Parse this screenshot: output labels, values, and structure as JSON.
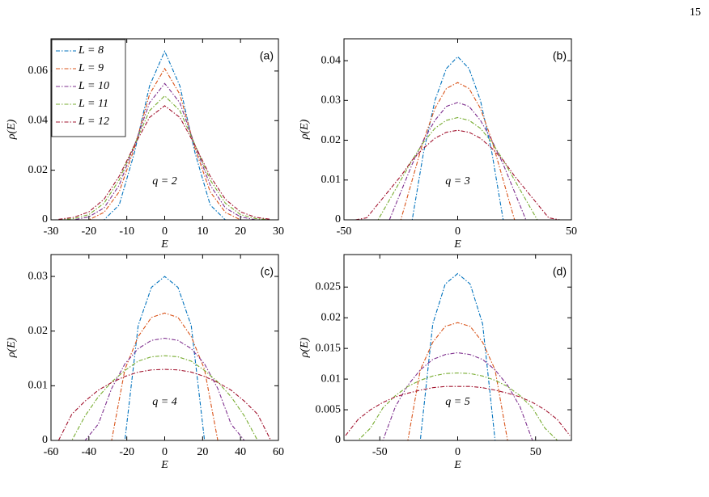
{
  "page_number": "15",
  "chart_data": [
    {
      "type": "line",
      "panel_label": "(a)",
      "annotation": "q = 2",
      "xlabel": "E",
      "ylabel": "ρ(E)",
      "legend": "upper left",
      "x": [
        -28,
        -24,
        -20,
        -16,
        -12,
        -8,
        -4,
        0,
        4,
        8,
        12,
        16,
        20,
        24,
        28
      ],
      "xlim": [
        -30,
        30
      ],
      "xticks": [
        -30,
        -20,
        -10,
        0,
        10,
        20,
        30
      ],
      "ylim": [
        0,
        0.073
      ],
      "yticks": [
        0,
        0.02,
        0.04,
        0.06
      ],
      "series": [
        {
          "name": "L = 8",
          "color": "#0072bd",
          "values": [
            0,
            0,
            0,
            0,
            0.006,
            0.027,
            0.054,
            0.068,
            0.054,
            0.027,
            0.006,
            0,
            0,
            0,
            0
          ]
        },
        {
          "name": "L = 9",
          "color": "#d95319",
          "values": [
            0,
            0,
            0,
            0.003,
            0.0113,
            0.0288,
            0.0506,
            0.061,
            0.0506,
            0.0288,
            0.0113,
            0.003,
            0,
            0,
            0
          ]
        },
        {
          "name": "L = 10",
          "color": "#7e2f8e",
          "values": [
            0,
            0,
            0.0012,
            0.0048,
            0.014,
            0.0299,
            0.0472,
            0.055,
            0.0472,
            0.0299,
            0.014,
            0.0048,
            0.0012,
            0,
            0
          ]
        },
        {
          "name": "L = 11",
          "color": "#77ac30",
          "values": [
            0,
            0.0005,
            0.0021,
            0.0067,
            0.0161,
            0.0302,
            0.044,
            0.05,
            0.044,
            0.0302,
            0.0161,
            0.0067,
            0.0021,
            0.0005,
            0
          ]
        },
        {
          "name": "L = 12",
          "color": "#a2142f",
          "values": [
            0.0002,
            0.001,
            0.0032,
            0.0083,
            0.0176,
            0.03,
            0.0413,
            0.046,
            0.0413,
            0.03,
            0.0176,
            0.0083,
            0.0032,
            0.001,
            0.0002
          ]
        }
      ]
    },
    {
      "type": "line",
      "panel_label": "(b)",
      "annotation": "q = 3",
      "xlabel": "E",
      "ylabel": "ρ(E)",
      "x": [
        -45,
        -40,
        -35,
        -30,
        -25,
        -20,
        -15,
        -10,
        -5,
        0,
        5,
        10,
        15,
        20,
        25,
        30,
        35,
        40,
        45
      ],
      "xlim": [
        -50,
        50
      ],
      "xticks": [
        -50,
        0,
        50
      ],
      "ylim": [
        0,
        0.0455
      ],
      "yticks": [
        0,
        0.01,
        0.02,
        0.03,
        0.04
      ],
      "series": [
        {
          "color": "#0072bd",
          "values": [
            0,
            0,
            0,
            0,
            0,
            0,
            0.017,
            0.03,
            0.038,
            0.041,
            0.038,
            0.03,
            0.017,
            0,
            0,
            0,
            0,
            0,
            0
          ]
        },
        {
          "color": "#d95319",
          "values": [
            0,
            0,
            0,
            0,
            0,
            0.01,
            0.02,
            0.028,
            0.033,
            0.0345,
            0.033,
            0.028,
            0.02,
            0.01,
            0,
            0,
            0,
            0,
            0
          ]
        },
        {
          "color": "#7e2f8e",
          "values": [
            0,
            0,
            0,
            0,
            0.007,
            0.014,
            0.02,
            0.025,
            0.0285,
            0.0295,
            0.0285,
            0.025,
            0.02,
            0.014,
            0.007,
            0,
            0,
            0,
            0
          ]
        },
        {
          "color": "#77ac30",
          "values": [
            0,
            0,
            0,
            0.005,
            0.01,
            0.015,
            0.0195,
            0.023,
            0.025,
            0.0257,
            0.025,
            0.023,
            0.0195,
            0.015,
            0.01,
            0.005,
            0,
            0,
            0
          ]
        },
        {
          "color": "#a2142f",
          "values": [
            0,
            0.0005,
            0.004,
            0.0075,
            0.011,
            0.015,
            0.018,
            0.0205,
            0.022,
            0.0225,
            0.022,
            0.0205,
            0.018,
            0.015,
            0.011,
            0.0075,
            0.004,
            0.0005,
            0
          ]
        }
      ]
    },
    {
      "type": "line",
      "panel_label": "(c)",
      "annotation": "q = 4",
      "xlabel": "E",
      "ylabel": "ρ(E)",
      "x": [
        -56,
        -49,
        -42,
        -35,
        -28,
        -21,
        -14,
        -7,
        0,
        7,
        14,
        21,
        28,
        35,
        42,
        49,
        56
      ],
      "xlim": [
        -60,
        60
      ],
      "xticks": [
        -60,
        -40,
        -20,
        0,
        20,
        40,
        60
      ],
      "ylim": [
        0,
        0.034
      ],
      "yticks": [
        0,
        0.01,
        0.02,
        0.03
      ],
      "series": [
        {
          "color": "#0072bd",
          "values": [
            0,
            0,
            0,
            0,
            0,
            0,
            0.021,
            0.028,
            0.03,
            0.028,
            0.021,
            0,
            0,
            0,
            0,
            0,
            0
          ]
        },
        {
          "color": "#d95319",
          "values": [
            0,
            0,
            0,
            0,
            0,
            0.013,
            0.019,
            0.0225,
            0.0233,
            0.0225,
            0.019,
            0.013,
            0,
            0,
            0,
            0,
            0
          ]
        },
        {
          "color": "#7e2f8e",
          "values": [
            0,
            0,
            0,
            0.003,
            0.0095,
            0.014,
            0.0168,
            0.0183,
            0.0187,
            0.0183,
            0.0168,
            0.014,
            0.0095,
            0.003,
            0,
            0,
            0
          ]
        },
        {
          "color": "#77ac30",
          "values": [
            0,
            0,
            0.0045,
            0.008,
            0.0107,
            0.0128,
            0.0145,
            0.0153,
            0.0155,
            0.0153,
            0.0145,
            0.0128,
            0.0107,
            0.008,
            0.0045,
            0,
            0
          ]
        },
        {
          "color": "#a2142f",
          "values": [
            0,
            0.0048,
            0.0072,
            0.0092,
            0.0106,
            0.0117,
            0.0125,
            0.0129,
            0.013,
            0.0129,
            0.0125,
            0.0117,
            0.0106,
            0.0092,
            0.0072,
            0.0048,
            0
          ]
        }
      ]
    },
    {
      "type": "line",
      "panel_label": "(d)",
      "annotation": "q = 5",
      "xlabel": "E",
      "ylabel": "ρ(E)",
      "x": [
        -72,
        -64,
        -56,
        -48,
        -40,
        -32,
        -24,
        -16,
        -8,
        0,
        8,
        16,
        24,
        32,
        40,
        48,
        56,
        64,
        72
      ],
      "xlim": [
        -73,
        73
      ],
      "xticks": [
        -50,
        0,
        50
      ],
      "ylim": [
        0,
        0.0303
      ],
      "yticks": [
        0,
        0.005,
        0.01,
        0.015,
        0.02,
        0.025
      ],
      "series": [
        {
          "color": "#0072bd",
          "values": [
            0,
            0,
            0,
            0,
            0,
            0,
            0,
            0.019,
            0.0255,
            0.0272,
            0.0255,
            0.019,
            0,
            0,
            0,
            0,
            0,
            0,
            0
          ]
        },
        {
          "color": "#d95319",
          "values": [
            0,
            0,
            0,
            0,
            0,
            0,
            0.0115,
            0.016,
            0.0186,
            0.0192,
            0.0186,
            0.016,
            0.0115,
            0,
            0,
            0,
            0,
            0,
            0
          ]
        },
        {
          "color": "#7e2f8e",
          "values": [
            0,
            0,
            0,
            0,
            0.0055,
            0.009,
            0.0115,
            0.0132,
            0.014,
            0.0143,
            0.014,
            0.0132,
            0.0115,
            0.009,
            0.0055,
            0,
            0,
            0,
            0
          ]
        },
        {
          "color": "#77ac30",
          "values": [
            0,
            0,
            0.002,
            0.0053,
            0.0073,
            0.0088,
            0.0098,
            0.0105,
            0.0109,
            0.011,
            0.0109,
            0.0105,
            0.0098,
            0.0088,
            0.0073,
            0.0053,
            0.002,
            0,
            0
          ]
        },
        {
          "color": "#a2142f",
          "values": [
            0.0008,
            0.0034,
            0.005,
            0.0062,
            0.0071,
            0.0077,
            0.0082,
            0.0086,
            0.0088,
            0.0088,
            0.0088,
            0.0086,
            0.0082,
            0.0077,
            0.0071,
            0.0062,
            0.005,
            0.0034,
            0.0008
          ]
        }
      ]
    }
  ]
}
